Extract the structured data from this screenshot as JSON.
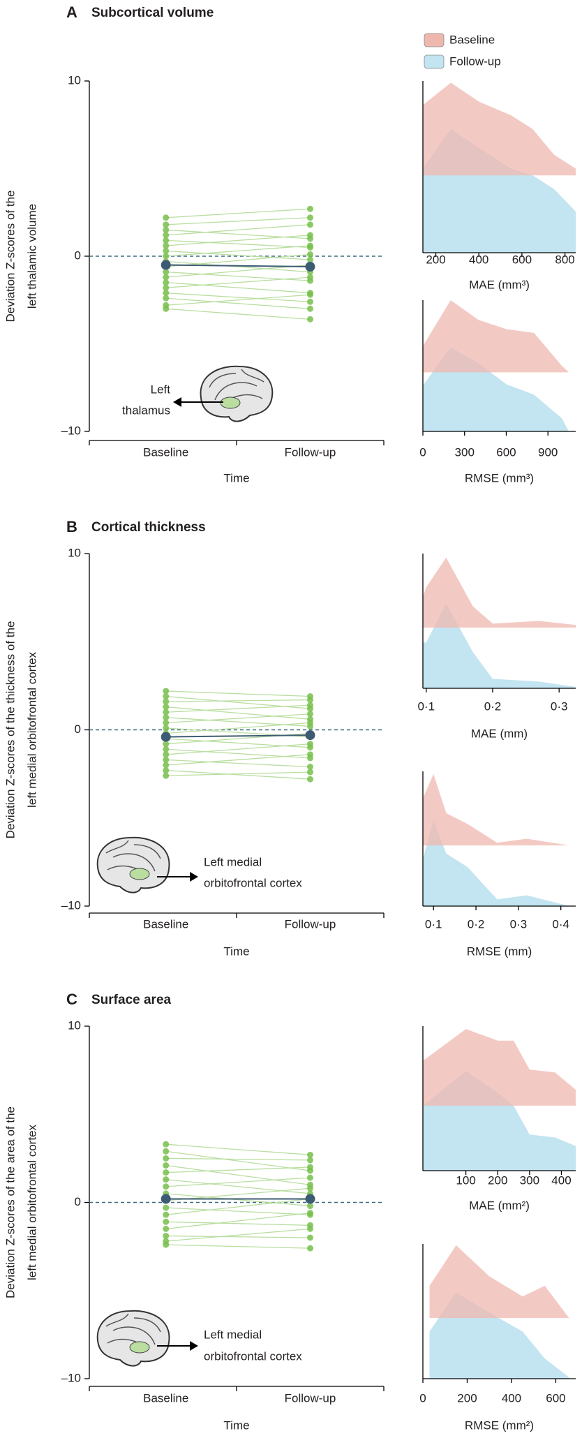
{
  "chart_data": [
    {
      "type": "slope",
      "panel": "A",
      "title": "Subcortical volume",
      "ylabel": [
        "Deviation Z-scores of the",
        "left thalamic volume"
      ],
      "xlabel": "Time",
      "categories": [
        "Baseline",
        "Follow-up"
      ],
      "ylim": [
        -10,
        10
      ],
      "yticks": [
        {
          "value": -10,
          "label": "–10"
        },
        0,
        10
      ],
      "zero_line": true,
      "lines": [
        [
          2.2,
          2.7
        ],
        [
          1.8,
          2.2
        ],
        [
          1.5,
          1.0
        ],
        [
          1.2,
          1.8
        ],
        [
          0.9,
          0.5
        ],
        [
          0.6,
          1.2
        ],
        [
          0.3,
          -0.2
        ],
        [
          0,
          0.6
        ],
        [
          -0.3,
          -0.9
        ],
        [
          -0.6,
          0.1
        ],
        [
          -0.9,
          -1.4
        ],
        [
          -1.2,
          -0.5
        ],
        [
          -1.5,
          -2.1
        ],
        [
          -1.8,
          -1.2
        ],
        [
          -2.1,
          -2.6
        ],
        [
          -2.4,
          -3.0
        ],
        [
          -2.8,
          -2.2
        ],
        [
          -3.0,
          -3.6
        ]
      ],
      "mean": [
        -0.5,
        -0.6
      ],
      "line_color": "#b9dea0",
      "point_color": "#78bf4b",
      "mean_color": "#3d5c74",
      "annotation": [
        "Left",
        "thalamus"
      ]
    },
    {
      "type": "density",
      "xlabel": "MAE (mm³)",
      "x": [
        140,
        270,
        400,
        550,
        650,
        750,
        850
      ],
      "xlim": [
        140,
        850
      ],
      "xticks": [
        200,
        400,
        600,
        800
      ],
      "ylim": [
        0,
        1
      ],
      "series": [
        {
          "name": "Baseline",
          "color": "#efb8af",
          "values": [
            0.41,
            0.54,
            0.43,
            0.35,
            0.27,
            0.12,
            0.04
          ]
        },
        {
          "name": "Follow-up",
          "color": "#c3e4f1",
          "values": [
            0.49,
            0.72,
            0.61,
            0.49,
            0.45,
            0.37,
            0.24
          ]
        }
      ]
    },
    {
      "type": "density",
      "xlabel": "RMSE (mm³)",
      "x": [
        0,
        200,
        400,
        600,
        800,
        1000,
        1050
      ],
      "xlim": [
        0,
        1100
      ],
      "xticks": [
        0,
        300,
        600,
        900
      ],
      "ylim": [
        0,
        1
      ],
      "series": [
        {
          "name": "Baseline",
          "color": "#efb8af",
          "values": [
            0.2,
            0.55,
            0.4,
            0.33,
            0.3,
            0.05,
            0
          ]
        },
        {
          "name": "Follow-up",
          "color": "#c3e4f1",
          "values": [
            0.35,
            0.64,
            0.52,
            0.36,
            0.28,
            0.1,
            0
          ]
        }
      ]
    },
    {
      "type": "slope",
      "panel": "B",
      "title": "Cortical thickness",
      "ylabel": [
        "Deviation Z-scores of the thickness of the",
        "left medial orbitofrontal cortex"
      ],
      "xlabel": "Time",
      "categories": [
        "Baseline",
        "Follow-up"
      ],
      "ylim": [
        -10,
        10
      ],
      "yticks": [
        {
          "value": -10,
          "label": "–10"
        },
        0,
        10
      ],
      "zero_line": true,
      "lines": [
        [
          2.2,
          1.9
        ],
        [
          1.9,
          1.2
        ],
        [
          1.6,
          1.7
        ],
        [
          1.3,
          0.6
        ],
        [
          1.0,
          1.4
        ],
        [
          0.7,
          0.2
        ],
        [
          0.4,
          0.9
        ],
        [
          0.1,
          -0.4
        ],
        [
          -0.2,
          0.4
        ],
        [
          -0.5,
          -1.0
        ],
        [
          -0.8,
          -0.2
        ],
        [
          -1.1,
          -1.6
        ],
        [
          -1.4,
          -0.8
        ],
        [
          -1.7,
          -2.1
        ],
        [
          -2.0,
          -1.4
        ],
        [
          -2.3,
          -2.8
        ],
        [
          -2.6,
          -2.4
        ]
      ],
      "mean": [
        -0.4,
        -0.3
      ],
      "line_color": "#b9dea0",
      "point_color": "#78bf4b",
      "mean_color": "#3d5c74",
      "annotation": [
        "Left medial",
        "orbitofrontal cortex"
      ]
    },
    {
      "type": "density",
      "xlabel": "MAE (mm)",
      "x": [
        0.095,
        0.1,
        0.13,
        0.17,
        0.2,
        0.27,
        0.325
      ],
      "xlim": [
        0.095,
        0.325
      ],
      "xticks": [
        {
          "value": 0.1,
          "label": "0·1"
        },
        {
          "value": 0.2,
          "label": "0·2"
        },
        {
          "value": 0.3,
          "label": "0·3"
        }
      ],
      "ylim": [
        0,
        1
      ],
      "series": [
        {
          "name": "Baseline",
          "color": "#efb8af",
          "values": [
            0.23,
            0.3,
            0.52,
            0.16,
            0.03,
            0.05,
            0.02
          ]
        },
        {
          "name": "Follow-up",
          "color": "#c3e4f1",
          "values": [
            0.34,
            0.34,
            0.63,
            0.27,
            0.07,
            0.05,
            0.01
          ]
        }
      ]
    },
    {
      "type": "density",
      "xlabel": "RMSE (mm)",
      "x": [
        0.075,
        0.1,
        0.13,
        0.18,
        0.25,
        0.32,
        0.42
      ],
      "xlim": [
        0.075,
        0.435
      ],
      "xticks": [
        {
          "value": 0.1,
          "label": "0·1"
        },
        {
          "value": 0.2,
          "label": "0·2"
        },
        {
          "value": 0.3,
          "label": "0·3"
        },
        {
          "value": 0.4,
          "label": "0·4"
        }
      ],
      "ylim": [
        0,
        1
      ],
      "series": [
        {
          "name": "Baseline",
          "color": "#efb8af",
          "values": [
            0.35,
            0.53,
            0.24,
            0.16,
            0.02,
            0.05,
            0
          ]
        },
        {
          "name": "Follow-up",
          "color": "#c3e4f1",
          "values": [
            0.35,
            0.64,
            0.39,
            0.29,
            0.05,
            0.08,
            0
          ]
        }
      ]
    },
    {
      "type": "slope",
      "panel": "C",
      "title": "Surface area",
      "ylabel": [
        "Deviation Z-scores of the area of the",
        "left medial orbitofrontal cortex"
      ],
      "xlabel": "Time",
      "categories": [
        "Baseline",
        "Follow-up"
      ],
      "ylim": [
        -10,
        10
      ],
      "yticks": [
        {
          "value": -10,
          "label": "–10"
        },
        0,
        10
      ],
      "zero_line": true,
      "lines": [
        [
          3.3,
          2.7
        ],
        [
          2.9,
          1.8
        ],
        [
          2.5,
          2.4
        ],
        [
          2.1,
          1.0
        ],
        [
          1.7,
          2.0
        ],
        [
          1.3,
          0.5
        ],
        [
          0.9,
          1.4
        ],
        [
          0.5,
          -0.2
        ],
        [
          0.1,
          0.8
        ],
        [
          -0.3,
          -0.7
        ],
        [
          -0.7,
          0.2
        ],
        [
          -1.1,
          -1.3
        ],
        [
          -1.5,
          -0.6
        ],
        [
          -1.9,
          -2.0
        ],
        [
          -2.2,
          -1.5
        ],
        [
          -2.4,
          -2.6
        ]
      ],
      "mean": [
        0.2,
        0.2
      ],
      "line_color": "#b9dea0",
      "point_color": "#78bf4b",
      "mean_color": "#3d5c74",
      "annotation": [
        "Left medial",
        "orbitofrontal cortex"
      ]
    },
    {
      "type": "density",
      "xlabel": "MAE (mm²)",
      "x": [
        -35,
        100,
        200,
        250,
        300,
        380,
        445
      ],
      "xlim": [
        -35,
        445
      ],
      "xticks": [
        100,
        200,
        300,
        400
      ],
      "ylim": [
        0,
        1
      ],
      "series": [
        {
          "name": "Baseline",
          "color": "#efb8af",
          "values": [
            0.31,
            0.53,
            0.45,
            0.45,
            0.25,
            0.23,
            0.11
          ]
        },
        {
          "name": "Follow-up",
          "color": "#c3e4f1",
          "values": [
            0.45,
            0.69,
            0.54,
            0.45,
            0.25,
            0.23,
            0.17
          ]
        }
      ]
    },
    {
      "type": "density",
      "xlabel": "RMSE (mm²)",
      "x": [
        30,
        150,
        300,
        450,
        550,
        660
      ],
      "xlim": [
        0,
        690
      ],
      "xticks": [
        0,
        200,
        400,
        600
      ],
      "ylim": [
        0,
        1
      ],
      "series": [
        {
          "name": "Baseline",
          "color": "#efb8af",
          "values": [
            0.24,
            0.54,
            0.31,
            0.16,
            0.24,
            0
          ]
        },
        {
          "name": "Follow-up",
          "color": "#c3e4f1",
          "values": [
            0.35,
            0.64,
            0.49,
            0.35,
            0.15,
            0.01
          ]
        }
      ]
    }
  ]
}
